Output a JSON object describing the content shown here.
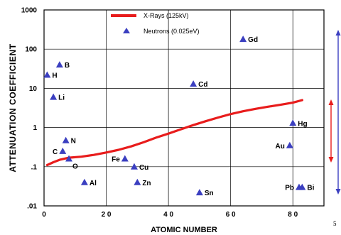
{
  "chart_data": {
    "type": "scatter",
    "xlabel": "ATOMIC NUMBER",
    "ylabel": "ATTENUATION COEFFICIENT",
    "xlim": [
      0,
      90
    ],
    "ylim": [
      0.01,
      1000
    ],
    "yscale": "log",
    "grid": true,
    "legend_position": "top-center",
    "x_ticks": [
      {
        "value": 0,
        "label": "0"
      },
      {
        "value": 20,
        "label": "2 0"
      },
      {
        "value": 40,
        "label": "4 0"
      },
      {
        "value": 60,
        "label": "6 0"
      },
      {
        "value": 80,
        "label": "8 0"
      }
    ],
    "y_ticks": [
      {
        "value": 1000,
        "label": "1000"
      },
      {
        "value": 100,
        "label": "100"
      },
      {
        "value": 10,
        "label": "10"
      },
      {
        "value": 1,
        "label": "1"
      },
      {
        "value": 0.1,
        "label": ".1"
      },
      {
        "value": 0.01,
        "label": ".01"
      }
    ],
    "series": [
      {
        "name": "X-Rays (125kV)",
        "kind": "line",
        "color": "#e81c1c",
        "x": [
          1,
          3,
          5,
          8,
          12,
          16,
          20,
          24,
          28,
          32,
          36,
          40,
          44,
          48,
          52,
          56,
          60,
          64,
          68,
          72,
          76,
          80,
          83
        ],
        "y": [
          0.11,
          0.13,
          0.15,
          0.17,
          0.18,
          0.2,
          0.23,
          0.27,
          0.33,
          0.42,
          0.55,
          0.7,
          0.9,
          1.15,
          1.45,
          1.8,
          2.2,
          2.6,
          3.0,
          3.4,
          3.8,
          4.3,
          5.0
        ]
      },
      {
        "name": "Neutrons (0.025eV)",
        "kind": "scatter",
        "color": "#3b3fc0",
        "points": [
          {
            "label": "H",
            "x": 1,
            "y": 22
          },
          {
            "label": "B",
            "x": 5,
            "y": 40
          },
          {
            "label": "Li",
            "x": 3,
            "y": 6
          },
          {
            "label": "N",
            "x": 7,
            "y": 0.47
          },
          {
            "label": "C",
            "x": 6,
            "y": 0.25
          },
          {
            "label": "O",
            "x": 8,
            "y": 0.16
          },
          {
            "label": "Al",
            "x": 13,
            "y": 0.04
          },
          {
            "label": "Fe",
            "x": 26,
            "y": 0.16
          },
          {
            "label": "Cu",
            "x": 29,
            "y": 0.1
          },
          {
            "label": "Zn",
            "x": 30,
            "y": 0.04
          },
          {
            "label": "Cd",
            "x": 48,
            "y": 13
          },
          {
            "label": "Sn",
            "x": 50,
            "y": 0.022
          },
          {
            "label": "Gd",
            "x": 64,
            "y": 180
          },
          {
            "label": "Hg",
            "x": 80,
            "y": 1.3
          },
          {
            "label": "Au",
            "x": 79,
            "y": 0.35
          },
          {
            "label": "Pb",
            "x": 82,
            "y": 0.03
          },
          {
            "label": "Bi",
            "x": 83,
            "y": 0.03
          }
        ]
      }
    ]
  },
  "page_number": "5",
  "side_arrows": [
    {
      "name": "neutron-range-arrow",
      "color": "#3b3fc0"
    },
    {
      "name": "xray-range-arrow",
      "color": "#e81c1c"
    }
  ]
}
